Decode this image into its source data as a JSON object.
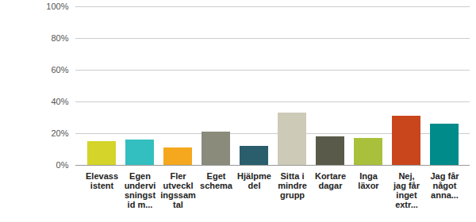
{
  "chart_data": {
    "type": "bar",
    "categories": [
      "Elevassistent",
      "Egen undervisningstid m...",
      "Fler utvecklingssamtal",
      "Eget schema",
      "Hjälpmedel",
      "Sitta i mindre grupp",
      "Kortare dagar",
      "Inga läxor",
      "Nej, jag får inget extr...",
      "Jag får något anna..."
    ],
    "values": [
      15,
      16,
      11,
      21,
      12,
      33,
      18,
      17,
      31,
      26
    ],
    "colors": [
      "#d4d42a",
      "#33bfbf",
      "#f5a81d",
      "#8b8b7b",
      "#2a5e6c",
      "#cdcbb8",
      "#5a5a4a",
      "#a8c03b",
      "#c9461c",
      "#008b8b"
    ],
    "ylim": [
      0,
      100
    ],
    "yticks": [
      {
        "value": 0,
        "label": "0%"
      },
      {
        "value": 20,
        "label": "20%"
      },
      {
        "value": 40,
        "label": "40%"
      },
      {
        "value": 60,
        "label": "60%"
      },
      {
        "value": 80,
        "label": "80%"
      },
      {
        "value": 100,
        "label": "100%"
      }
    ],
    "grid": true
  }
}
